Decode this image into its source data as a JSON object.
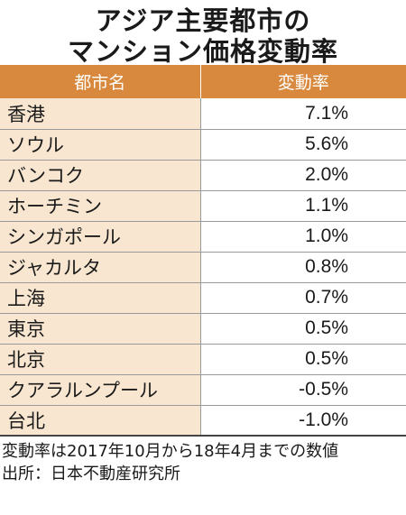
{
  "title": {
    "line1": "アジア主要都市の",
    "line2": "マンション価格変動率"
  },
  "table": {
    "headers": [
      "都市名",
      "変動率"
    ],
    "rows": [
      {
        "city": "香港",
        "rate": "7.1%"
      },
      {
        "city": "ソウル",
        "rate": "5.6%"
      },
      {
        "city": "バンコク",
        "rate": "2.0%"
      },
      {
        "city": "ホーチミン",
        "rate": "1.1%"
      },
      {
        "city": "シンガポール",
        "rate": "1.0%"
      },
      {
        "city": "ジャカルタ",
        "rate": "0.8%"
      },
      {
        "city": "上海",
        "rate": "0.7%"
      },
      {
        "city": "東京",
        "rate": "0.5%"
      },
      {
        "city": "北京",
        "rate": "0.5%"
      },
      {
        "city": "クアラルンプール",
        "rate": "-0.5%"
      },
      {
        "city": "台北",
        "rate": "-1.0%"
      }
    ]
  },
  "notes": {
    "period": "変動率は2017年10月から18年4月までの数値",
    "source": "出所：日本不動産研究所"
  },
  "colors": {
    "header_bg": "#d9893d",
    "city_cell_bg": "#f8e6d0"
  }
}
